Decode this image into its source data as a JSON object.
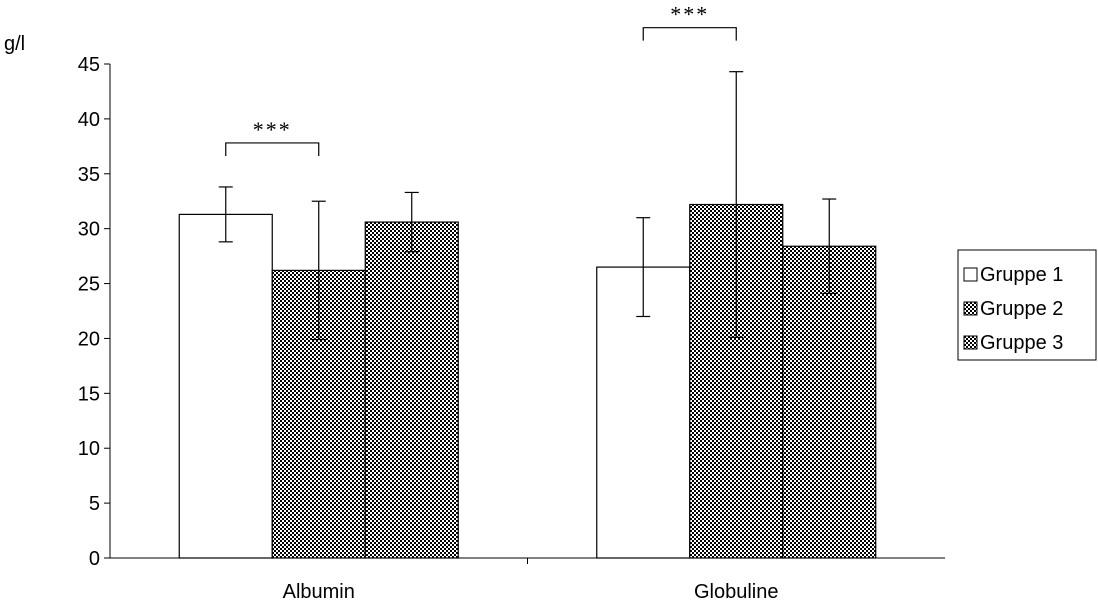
{
  "chart_data": {
    "type": "bar",
    "ylabel": "g/l",
    "xlabel": "",
    "ylim": [
      0,
      45
    ],
    "yticks": [
      0,
      5,
      10,
      15,
      20,
      25,
      30,
      35,
      40,
      45
    ],
    "grid": false,
    "legend_position": "right",
    "categories": [
      "Albumin",
      "Globuline"
    ],
    "series": [
      {
        "name": "Gruppe 1",
        "pattern": "white",
        "values": [
          31.3,
          26.5
        ],
        "error": [
          2.5,
          4.5
        ]
      },
      {
        "name": "Gruppe 2",
        "pattern": "checker",
        "values": [
          26.2,
          32.2
        ],
        "error": [
          6.3,
          12.1
        ]
      },
      {
        "name": "Gruppe 3",
        "pattern": "checker",
        "values": [
          30.6,
          28.4
        ],
        "error": [
          2.7,
          4.3
        ]
      }
    ],
    "annotations": [
      {
        "text": "***",
        "category": "Albumin",
        "between": [
          "Gruppe 1",
          "Gruppe 2"
        ]
      },
      {
        "text": "***",
        "category": "Globuline",
        "between": [
          "Gruppe 1",
          "Gruppe 2"
        ]
      }
    ]
  }
}
